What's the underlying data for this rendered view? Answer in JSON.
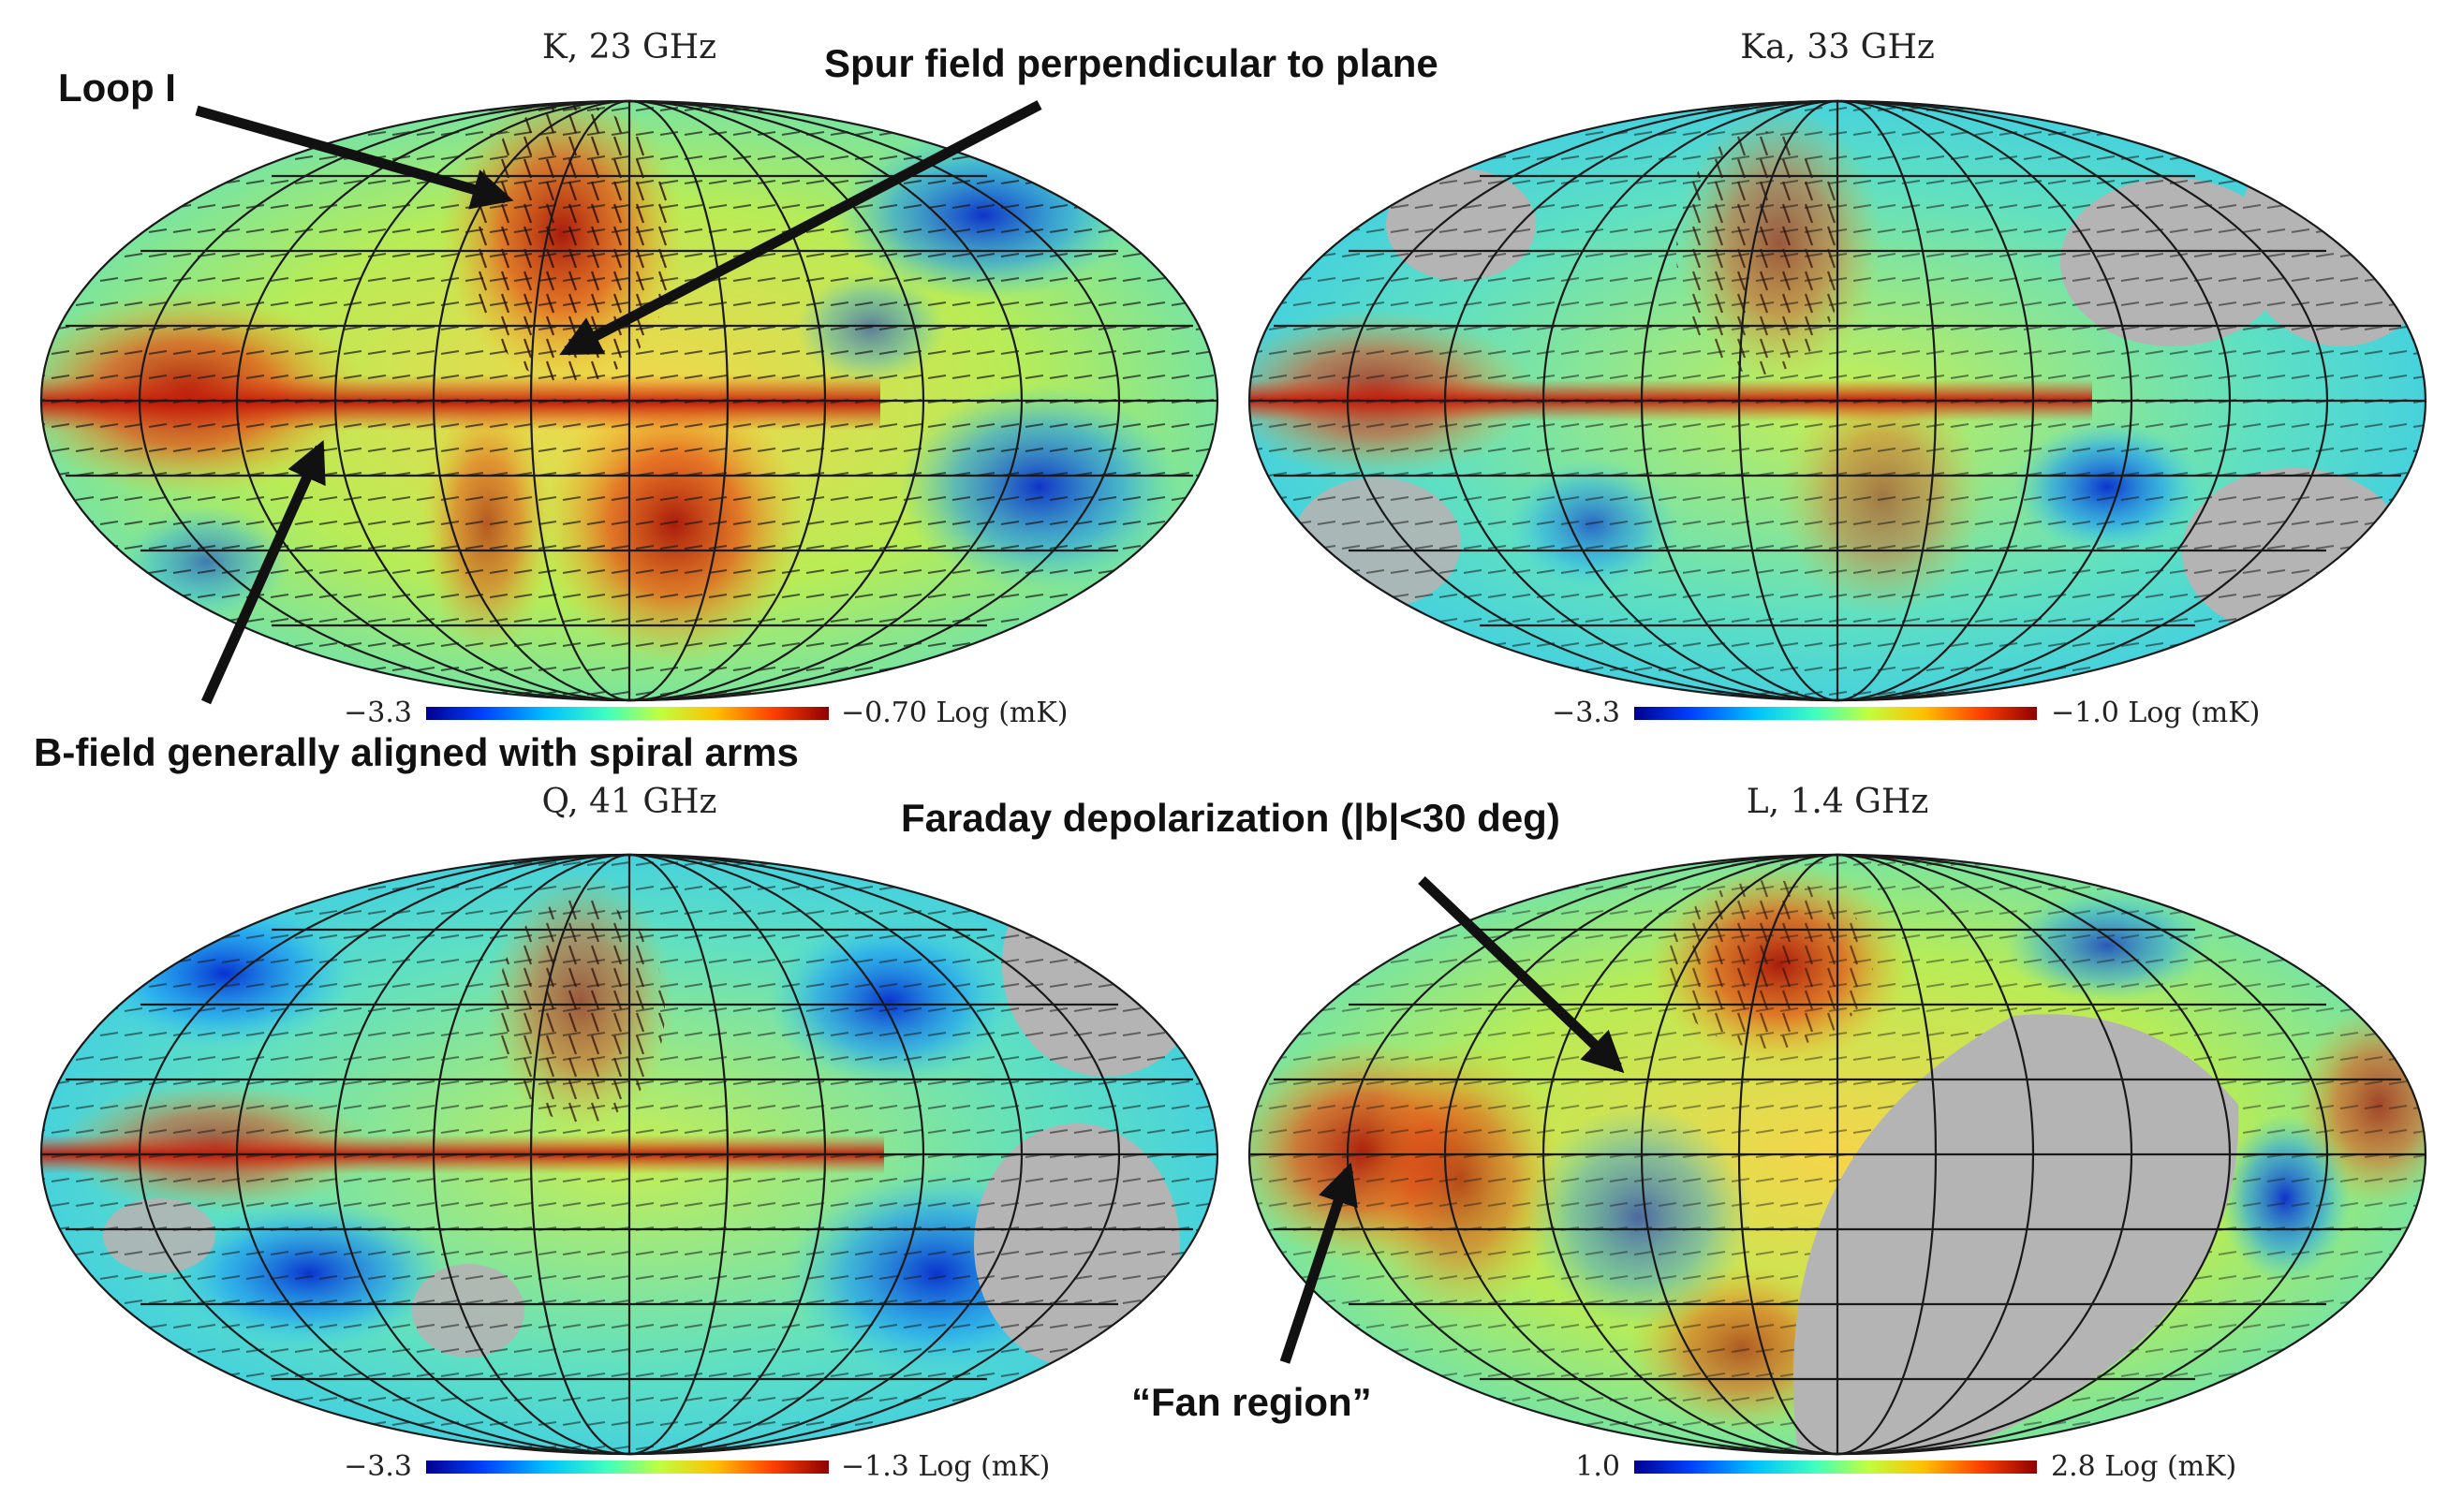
{
  "panels": [
    {
      "title": "K, 23 GHz",
      "colorbar": {
        "min_label": "−3.3",
        "max_label": "−0.70 Log (mK)"
      },
      "masked": "none"
    },
    {
      "title": "Ka, 33 GHz",
      "colorbar": {
        "min_label": "−3.3",
        "max_label": "−1.0 Log (mK)"
      },
      "masked": "patches"
    },
    {
      "title": "Q, 41 GHz",
      "colorbar": {
        "min_label": "−3.3",
        "max_label": "−1.3 Log (mK)"
      },
      "masked": "patches"
    },
    {
      "title": "L, 1.4 GHz",
      "colorbar": {
        "min_label": "1.0",
        "max_label": "2.8 Log (mK)"
      },
      "masked": "southern-sky"
    }
  ],
  "annotations": {
    "loop": "Loop I",
    "spur": "Spur field perpendicular to plane",
    "bfield": "B-field generally aligned with spiral arms",
    "faraday": "Faraday depolarization (|b|<30 deg)",
    "fan": "“Fan region”"
  },
  "colors": {
    "jet": [
      "#00008f",
      "#0040ff",
      "#00c0ff",
      "#40ffbf",
      "#bfff40",
      "#ffbf00",
      "#ff4000",
      "#8f0000"
    ],
    "mask_gray": "#b4b4b4",
    "grid": "#1a1a1a"
  }
}
